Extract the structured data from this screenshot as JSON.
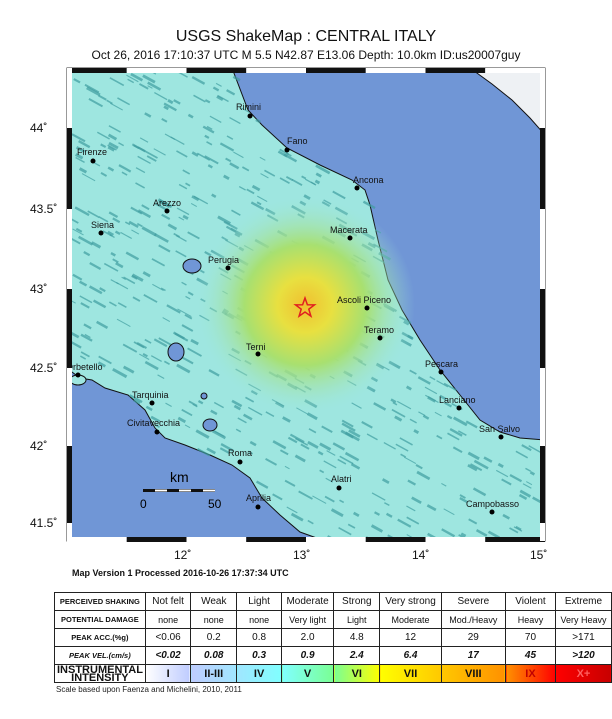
{
  "title": "USGS ShakeMap : CENTRAL ITALY",
  "subtitle": "Oct 26, 2016 17:10:37 UTC   M 5.5   N42.87 E13.06   Depth: 10.0km   ID:us20007guy",
  "map": {
    "lat_ticks": [
      "44˚",
      "43.5˚",
      "43˚",
      "42.5˚",
      "42˚",
      "41.5˚"
    ],
    "lon_ticks": [
      "12˚",
      "13˚",
      "14˚",
      "15˚"
    ],
    "cities": [
      "Rimini",
      "Fano",
      "Firenze",
      "Ancona",
      "Arezzo",
      "Siena",
      "Macerata",
      "Perugia",
      "Ascoli Piceno",
      "Teramo",
      "Terni",
      "Pescara",
      "Orbetello",
      "Tarquinia",
      "Lanciano",
      "Civitavecchia",
      "San Salvo",
      "Roma",
      "Alatri",
      "Aprilia",
      "Campobasso"
    ],
    "scale_bar": {
      "unit": "km",
      "min": "0",
      "max": "50"
    },
    "epicenter_icon": "star-icon",
    "colors": {
      "sea": "#7096d6",
      "land": "#9ee6e0",
      "shade": "#3f9da0",
      "epicenter": "#e02020"
    }
  },
  "version_text": "Map Version 1 Processed 2016-10-26 17:37:34 UTC",
  "legend": {
    "rows": [
      {
        "header": "PERCEIVED SHAKING",
        "cells": [
          "Not felt",
          "Weak",
          "Light",
          "Moderate",
          "Strong",
          "Very strong",
          "Severe",
          "Violent",
          "Extreme"
        ]
      },
      {
        "header": "POTENTIAL DAMAGE",
        "cells": [
          "none",
          "none",
          "none",
          "Very light",
          "Light",
          "Moderate",
          "Mod./Heavy",
          "Heavy",
          "Very Heavy"
        ]
      },
      {
        "header": "PEAK ACC.(%g)",
        "cells": [
          "<0.06",
          "0.2",
          "0.8",
          "2.0",
          "4.8",
          "12",
          "29",
          "70",
          ">171"
        ]
      },
      {
        "header": "PEAK VEL.(cm/s)",
        "cells": [
          "<0.02",
          "0.08",
          "0.3",
          "0.9",
          "2.4",
          "6.4",
          "17",
          "45",
          ">120"
        ]
      },
      {
        "header": "INSTRUMENTAL INTENSITY",
        "cells": [
          "I",
          "II-III",
          "IV",
          "V",
          "VI",
          "VII",
          "VIII",
          "IX",
          "X+"
        ]
      }
    ],
    "intensity_colors": [
      "#ffffff",
      "#bfccff",
      "#a0e6ff",
      "#80ffff",
      "#7aff93",
      "#ffff00",
      "#ffc800",
      "#ff9100",
      "#ff0000",
      "#c80000"
    ],
    "note": "Scale based upon Faenza and Michelini, 2010, 2011"
  }
}
